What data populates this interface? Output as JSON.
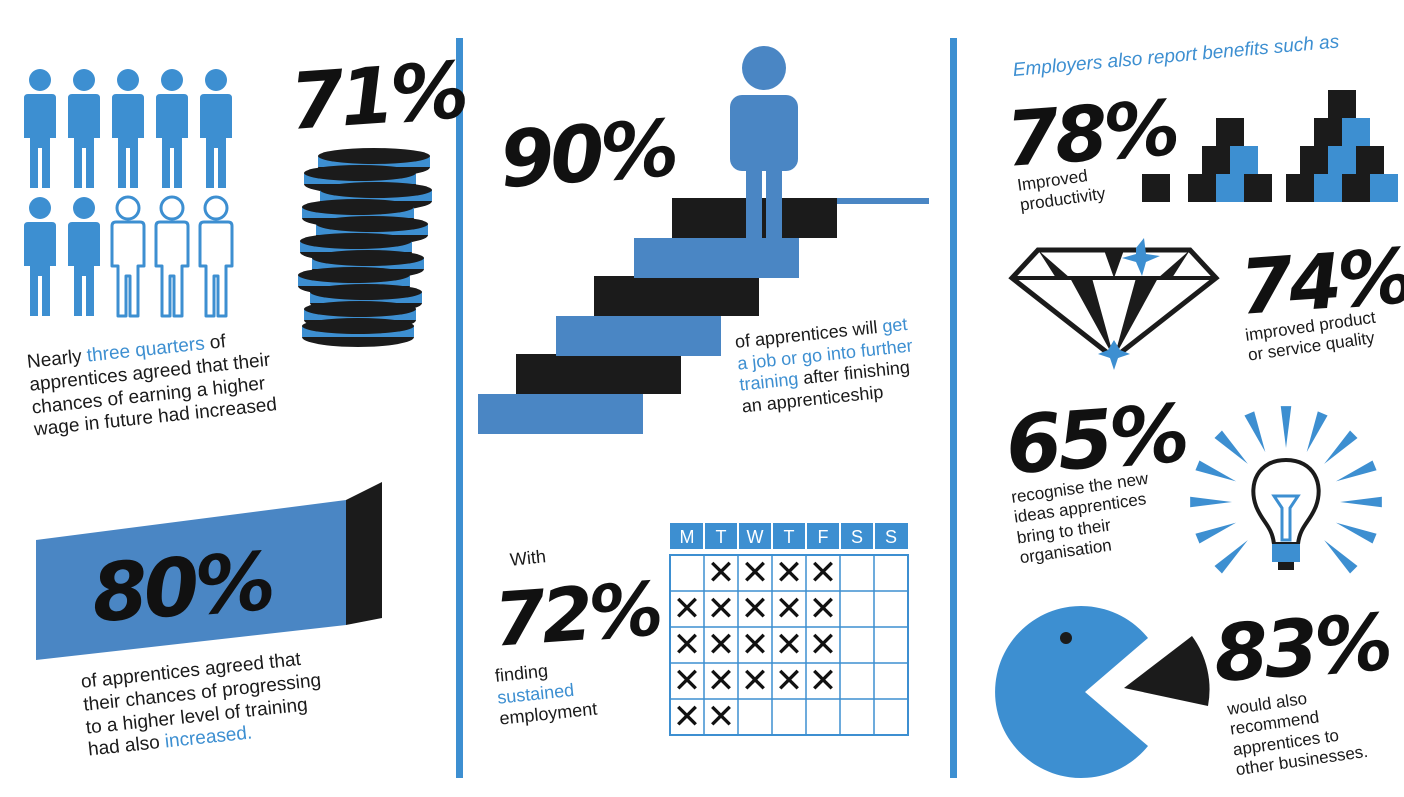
{
  "colors": {
    "blue": "#3d8fd1",
    "steel_blue": "#4a86c4",
    "black": "#1b1b1b",
    "white": "#ffffff"
  },
  "left": {
    "stat_71": "71%",
    "people": {
      "filled": 7,
      "total": 10
    },
    "wage_text": {
      "l1a": "Nearly ",
      "l1b": "three quarters",
      "l1c": " of",
      "l2": "apprentices agreed that their",
      "l3": "chances of earning a higher",
      "l4": "wage in future had increased"
    },
    "stat_80": "80%",
    "progress_bar": {
      "fill_percent": 80
    },
    "progress_text": {
      "l1": "of apprentices agreed that",
      "l2": "their chances of progressing",
      "l3": "to a higher level of training",
      "l4a": "had also ",
      "l4b": "increased."
    }
  },
  "middle": {
    "stat_90": "90%",
    "job_text": {
      "l1a": "of apprentices will ",
      "l1b": "get",
      "l2": "a job or go into further",
      "l3a": "training",
      "l3b": " after finishing",
      "l4": "an apprenticeship"
    },
    "with_label": "With",
    "stat_72": "72%",
    "employment_text": {
      "l1": "finding",
      "l2": "sustained",
      "l3": "employment"
    },
    "calendar": {
      "days": [
        "M",
        "T",
        "W",
        "T",
        "F",
        "S",
        "S"
      ],
      "mark": "✕",
      "rows": [
        [
          false,
          true,
          true,
          true,
          true,
          false,
          false
        ],
        [
          true,
          true,
          true,
          true,
          true,
          false,
          false
        ],
        [
          true,
          true,
          true,
          true,
          true,
          false,
          false
        ],
        [
          true,
          true,
          true,
          true,
          true,
          false,
          false
        ],
        [
          true,
          true,
          false,
          false,
          false,
          false,
          false
        ]
      ]
    }
  },
  "right": {
    "heading": "Employers also report benefits such as",
    "stat_78": "78%",
    "productivity_text": {
      "l1": "Improved",
      "l2": "productivity"
    },
    "stat_74": "74%",
    "quality_text": {
      "l1": "improved product",
      "l2": "or service quality"
    },
    "stat_65": "65%",
    "ideas_text": {
      "l1": "recognise  the new",
      "l2": "ideas apprentices",
      "l3": "bring to their",
      "l4": "organisation"
    },
    "stat_83": "83%",
    "recommend_text": {
      "l1": "would also",
      "l2": "recommend",
      "l3": "apprentices to",
      "l4": "other businesses."
    }
  }
}
